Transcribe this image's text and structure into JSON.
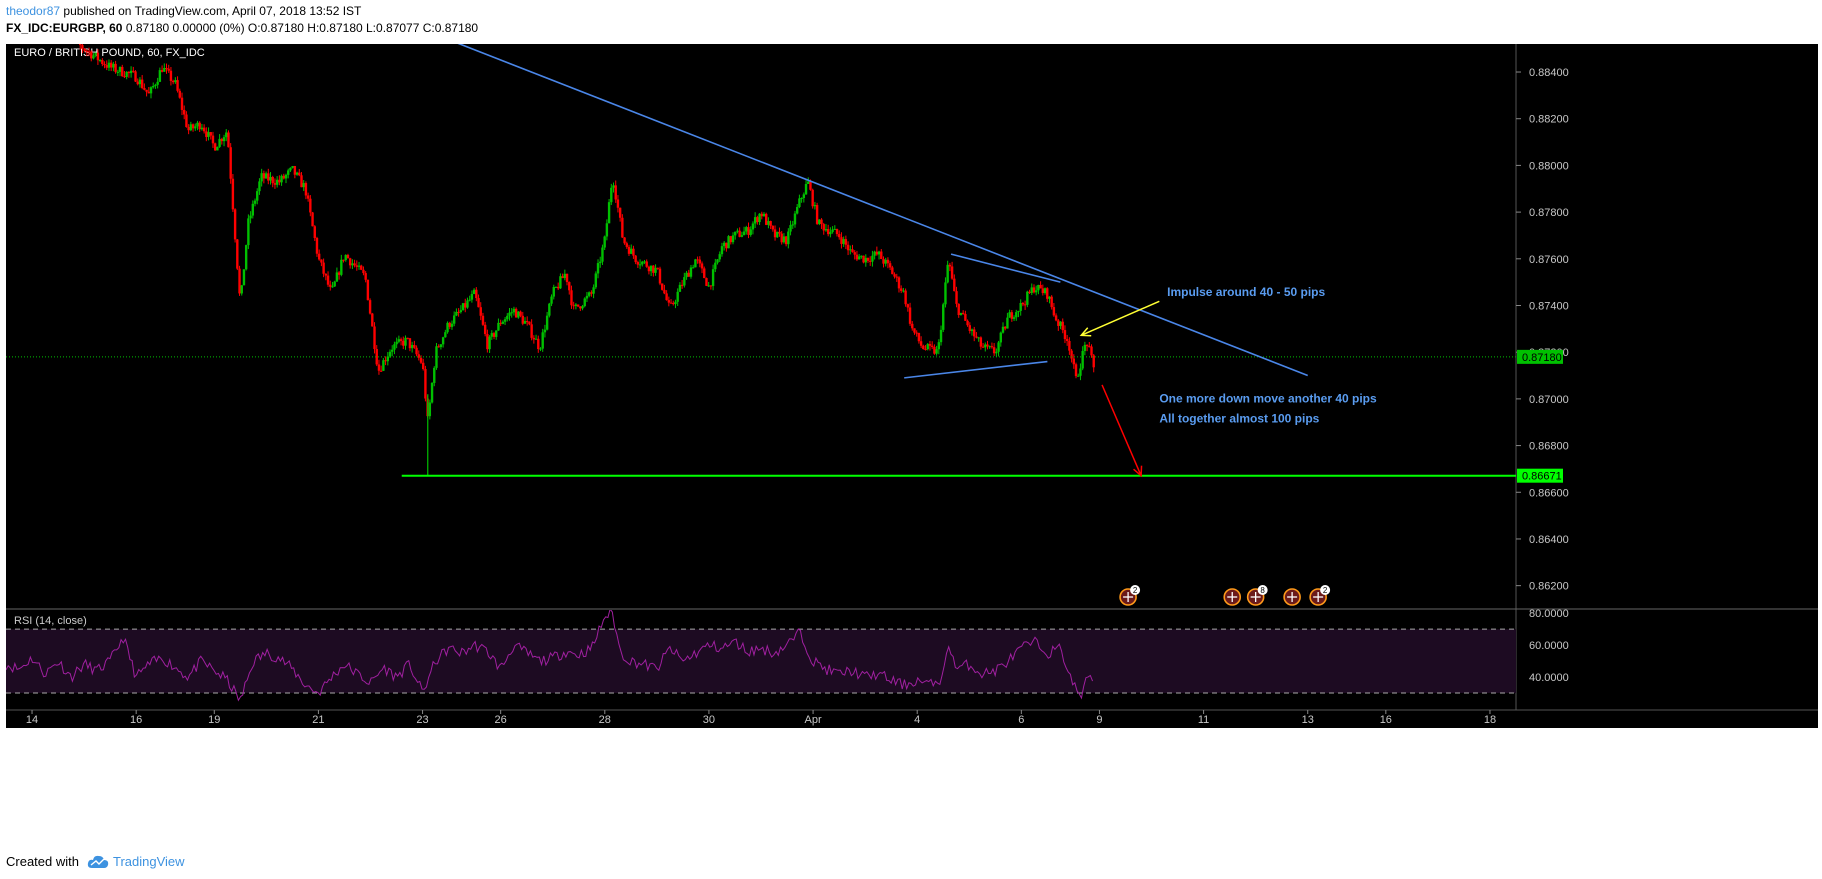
{
  "header": {
    "username": "theodor87",
    "published_text": "published on TradingView.com, April 07, 2018 13:52 IST",
    "symbol_line_bold": "FX_IDC:EURGBP, 60",
    "ohlc_text": "0.87180 0.00000 (0%) O:0.87180 H:0.87180 L:0.87077 C:0.87180"
  },
  "footer": {
    "created_with": "Created with",
    "brand": "TradingView"
  },
  "chart_data": {
    "type": "candlestick",
    "title": "EURO / BRITISH POUND, 60, FX_IDC",
    "price_axis": {
      "ticks": [
        "0.88400",
        "0.88200",
        "0.88000",
        "0.87800",
        "0.87600",
        "0.87400",
        "0.87200",
        "0.87000",
        "0.86800",
        "0.86600",
        "0.86400",
        "0.86200"
      ],
      "range": [
        0.861,
        0.8852
      ],
      "last_price_label": "0.87180",
      "support_label": "0.86671"
    },
    "time_axis": {
      "ticks": [
        "14",
        "16",
        "19",
        "21",
        "23",
        "26",
        "28",
        "30",
        "Apr",
        "4",
        "6",
        "9",
        "11",
        "13",
        "16",
        "18"
      ],
      "tick_index": [
        1,
        5,
        8,
        12,
        16,
        19,
        23,
        27,
        31,
        35,
        39,
        42,
        46,
        50,
        53,
        57
      ],
      "range": [
        0,
        58
      ]
    },
    "price_path": [
      [
        2,
        0.8858
      ],
      [
        3,
        0.885
      ],
      [
        4,
        0.8842
      ],
      [
        5,
        0.8838
      ],
      [
        5.5,
        0.883
      ],
      [
        6,
        0.8842
      ],
      [
        6.5,
        0.8835
      ],
      [
        7,
        0.8815
      ],
      [
        7.5,
        0.8818
      ],
      [
        8,
        0.8808
      ],
      [
        8.5,
        0.8815
      ],
      [
        9,
        0.874
      ],
      [
        9.3,
        0.8775
      ],
      [
        9.8,
        0.8795
      ],
      [
        10.5,
        0.8793
      ],
      [
        11,
        0.8798
      ],
      [
        11.5,
        0.879
      ],
      [
        12,
        0.876
      ],
      [
        12.5,
        0.8745
      ],
      [
        13,
        0.8762
      ],
      [
        13.8,
        0.8752
      ],
      [
        14.3,
        0.8712
      ],
      [
        14.8,
        0.8722
      ],
      [
        15.4,
        0.8725
      ],
      [
        16,
        0.8715
      ],
      [
        16.2,
        0.869
      ],
      [
        16.5,
        0.872
      ],
      [
        17,
        0.8732
      ],
      [
        17.5,
        0.8738
      ],
      [
        18,
        0.8745
      ],
      [
        18.5,
        0.8723
      ],
      [
        19,
        0.8733
      ],
      [
        19.5,
        0.8738
      ],
      [
        20,
        0.8732
      ],
      [
        20.5,
        0.8722
      ],
      [
        21,
        0.8745
      ],
      [
        21.5,
        0.8754
      ],
      [
        21.8,
        0.8738
      ],
      [
        22.5,
        0.8745
      ],
      [
        23,
        0.8768
      ],
      [
        23.3,
        0.8796
      ],
      [
        23.7,
        0.8768
      ],
      [
        24.2,
        0.876
      ],
      [
        25,
        0.8755
      ],
      [
        25.5,
        0.8738
      ],
      [
        26,
        0.875
      ],
      [
        26.5,
        0.876
      ],
      [
        27,
        0.8748
      ],
      [
        27.5,
        0.8765
      ],
      [
        28,
        0.877
      ],
      [
        28.5,
        0.8772
      ],
      [
        29,
        0.878
      ],
      [
        29.5,
        0.877
      ],
      [
        30,
        0.8768
      ],
      [
        30.5,
        0.8785
      ],
      [
        30.8,
        0.8793
      ],
      [
        31.2,
        0.8775
      ],
      [
        32,
        0.877
      ],
      [
        32.5,
        0.8762
      ],
      [
        33,
        0.876
      ],
      [
        33.5,
        0.8762
      ],
      [
        34,
        0.8755
      ],
      [
        34.5,
        0.8745
      ],
      [
        34.8,
        0.873
      ],
      [
        35.2,
        0.8722
      ],
      [
        35.8,
        0.872
      ],
      [
        36.2,
        0.876
      ],
      [
        36.5,
        0.874
      ],
      [
        37,
        0.873
      ],
      [
        37.5,
        0.8722
      ],
      [
        38,
        0.872
      ],
      [
        38.5,
        0.8735
      ],
      [
        39,
        0.874
      ],
      [
        39.5,
        0.8748
      ],
      [
        40,
        0.8745
      ],
      [
        40.3,
        0.8735
      ],
      [
        40.8,
        0.8725
      ],
      [
        41.1,
        0.8708
      ],
      [
        41.5,
        0.8725
      ],
      [
        41.8,
        0.8712
      ]
    ],
    "rsi": {
      "label": "RSI (14, close)",
      "levels": [
        70,
        30
      ],
      "ticks": [
        "80.0000",
        "60.0000",
        "40.0000"
      ],
      "range": [
        20,
        82
      ],
      "path": [
        [
          0,
          48
        ],
        [
          0.5,
          45
        ],
        [
          1,
          52
        ],
        [
          1.5,
          42
        ],
        [
          2,
          50
        ],
        [
          2.5,
          40
        ],
        [
          3,
          48
        ],
        [
          3.5,
          44
        ],
        [
          4,
          50
        ],
        [
          4.5,
          65
        ],
        [
          5,
          40
        ],
        [
          5.5,
          48
        ],
        [
          6,
          52
        ],
        [
          6.5,
          46
        ],
        [
          7,
          40
        ],
        [
          7.5,
          50
        ],
        [
          8,
          44
        ],
        [
          8.5,
          38
        ],
        [
          9,
          25
        ],
        [
          9.5,
          50
        ],
        [
          10,
          55
        ],
        [
          10.5,
          52
        ],
        [
          11,
          45
        ],
        [
          11.5,
          35
        ],
        [
          12,
          30
        ],
        [
          12.5,
          40
        ],
        [
          13,
          48
        ],
        [
          13.5,
          42
        ],
        [
          14,
          36
        ],
        [
          14.5,
          46
        ],
        [
          15,
          40
        ],
        [
          15.5,
          48
        ],
        [
          16,
          30
        ],
        [
          16.5,
          50
        ],
        [
          17,
          58
        ],
        [
          17.5,
          55
        ],
        [
          18,
          60
        ],
        [
          18.5,
          56
        ],
        [
          19,
          45
        ],
        [
          19.5,
          60
        ],
        [
          20,
          55
        ],
        [
          20.5,
          50
        ],
        [
          21,
          52
        ],
        [
          21.5,
          56
        ],
        [
          22,
          54
        ],
        [
          22.5,
          58
        ],
        [
          23,
          78
        ],
        [
          23.3,
          80
        ],
        [
          23.6,
          55
        ],
        [
          24,
          50
        ],
        [
          24.5,
          48
        ],
        [
          25,
          45
        ],
        [
          25.5,
          58
        ],
        [
          26,
          50
        ],
        [
          26.5,
          55
        ],
        [
          27,
          60
        ],
        [
          27.5,
          58
        ],
        [
          28,
          62
        ],
        [
          28.5,
          56
        ],
        [
          29,
          58
        ],
        [
          29.5,
          55
        ],
        [
          30,
          60
        ],
        [
          30.5,
          68
        ],
        [
          31,
          50
        ],
        [
          31.5,
          45
        ],
        [
          32,
          42
        ],
        [
          32.5,
          44
        ],
        [
          33,
          40
        ],
        [
          33.5,
          42
        ],
        [
          34,
          38
        ],
        [
          34.5,
          35
        ],
        [
          35,
          38
        ],
        [
          35.5,
          35
        ],
        [
          36,
          40
        ],
        [
          36.2,
          62
        ],
        [
          36.5,
          45
        ],
        [
          37,
          48
        ],
        [
          37.5,
          42
        ],
        [
          38,
          44
        ],
        [
          38.5,
          50
        ],
        [
          39,
          58
        ],
        [
          39.5,
          62
        ],
        [
          40,
          55
        ],
        [
          40.5,
          58
        ],
        [
          41,
          35
        ],
        [
          41.3,
          28
        ],
        [
          41.6,
          42
        ],
        [
          41.8,
          38
        ]
      ]
    },
    "drawings": {
      "downtrend_line": [
        [
          17.2,
          0.8853
        ],
        [
          50,
          0.871
        ]
      ],
      "wedge_upper": [
        [
          36.3,
          0.8762
        ],
        [
          40.5,
          0.875
        ]
      ],
      "wedge_lower": [
        [
          34.5,
          0.8709
        ],
        [
          40,
          0.8716
        ]
      ],
      "support_line": [
        [
          15.2,
          0.86671
        ],
        [
          58,
          0.86671
        ]
      ],
      "down_arrow": [
        [
          42.1,
          0.8706
        ],
        [
          43.6,
          0.86671
        ]
      ],
      "yellow_arrow": [
        [
          44.3,
          0.87418
        ],
        [
          41.3,
          0.87272
        ]
      ]
    },
    "annotations": [
      {
        "text": "Impulse around 40 - 50 pips",
        "x": 44.6,
        "y": 0.8744
      },
      {
        "text": "One more down move another 40 pips",
        "x": 44.3,
        "y": 0.86985
      },
      {
        "text": "All together almost 100 pips",
        "x": 44.3,
        "y": 0.86898
      }
    ],
    "event_markers": [
      {
        "x": 43.1,
        "badge": "2"
      },
      {
        "x": 47.1,
        "badge": ""
      },
      {
        "x": 48.0,
        "badge": "8"
      },
      {
        "x": 49.4,
        "badge": ""
      },
      {
        "x": 50.4,
        "badge": "2"
      }
    ],
    "colors": {
      "background": "#000000",
      "up": "#00c000",
      "down": "#ff0000",
      "trendline": "#4a86e8",
      "support": "#00ff00",
      "arrow_red": "#ff0000",
      "arrow_yellow": "#ffff33",
      "annotation": "#5a9cf0",
      "rsi_line": "#a020a0",
      "rsi_band": "#1d0b22",
      "axis_text": "#c8c8c8"
    }
  }
}
